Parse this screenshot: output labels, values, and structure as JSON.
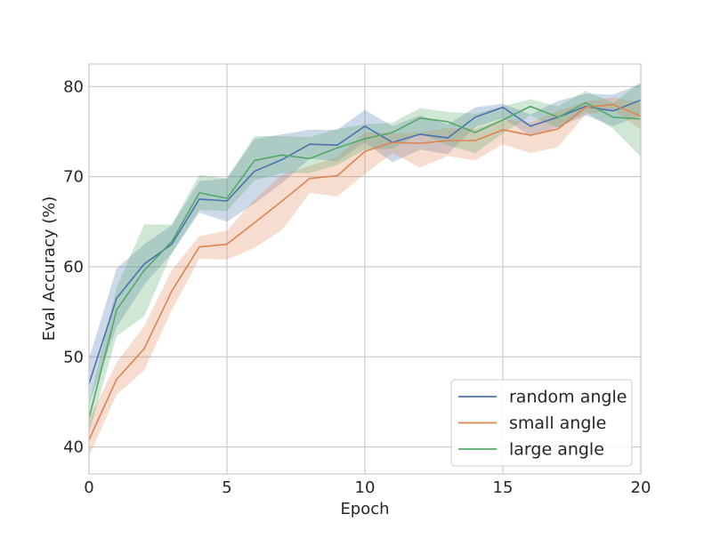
{
  "chart_data": {
    "type": "line",
    "title": "",
    "xlabel": "Epoch",
    "ylabel": "Eval Accuracy (%)",
    "xlim": [
      0,
      20
    ],
    "ylim": [
      37,
      82.5
    ],
    "xticks": [
      0,
      5,
      10,
      15,
      20
    ],
    "yticks": [
      40,
      50,
      60,
      70,
      80
    ],
    "grid": true,
    "legend_position": "lower-right",
    "x": [
      0,
      1,
      2,
      3,
      4,
      5,
      6,
      7,
      8,
      9,
      10,
      11,
      12,
      13,
      14,
      15,
      16,
      17,
      18,
      19,
      20
    ],
    "series": [
      {
        "name": "random angle",
        "color": "#4c72b0",
        "values": [
          47.0,
          56.5,
          60.3,
          62.5,
          67.5,
          67.3,
          70.6,
          71.9,
          73.6,
          73.5,
          75.6,
          73.8,
          74.7,
          74.3,
          76.6,
          77.7,
          75.6,
          76.6,
          77.8,
          77.3,
          78.5
        ],
        "lower": [
          44.8,
          53.3,
          58.0,
          61.5,
          66.0,
          65.0,
          67.0,
          69.3,
          72.0,
          71.7,
          73.8,
          71.6,
          73.0,
          72.5,
          75.5,
          76.5,
          74.5,
          75.5,
          76.8,
          75.6,
          76.8
        ],
        "upper": [
          49.8,
          59.8,
          62.5,
          64.6,
          69.5,
          69.8,
          74.2,
          74.7,
          75.2,
          75.2,
          77.4,
          75.6,
          76.8,
          75.8,
          77.7,
          78.1,
          76.9,
          78.4,
          79.2,
          79.1,
          80.3
        ]
      },
      {
        "name": "small angle",
        "color": "#dd8452",
        "values": [
          40.8,
          47.5,
          50.9,
          57.3,
          62.2,
          62.5,
          64.9,
          67.3,
          69.8,
          70.1,
          72.8,
          73.8,
          73.7,
          74.0,
          74.0,
          75.2,
          74.6,
          75.3,
          77.7,
          78.0,
          76.7
        ],
        "lower": [
          39.0,
          45.8,
          48.5,
          55.2,
          60.9,
          60.8,
          62.1,
          64.1,
          68.2,
          67.8,
          70.3,
          72.6,
          71.0,
          72.3,
          71.8,
          73.6,
          72.6,
          73.3,
          76.9,
          77.4,
          75.2
        ],
        "upper": [
          43.0,
          49.4,
          53.4,
          59.6,
          63.4,
          64.0,
          67.5,
          70.2,
          71.2,
          72.2,
          74.9,
          74.8,
          74.9,
          75.4,
          75.3,
          76.4,
          76.0,
          77.3,
          78.3,
          78.8,
          78.2
        ]
      },
      {
        "name": "large angle",
        "color": "#55a868",
        "values": [
          43.2,
          55.2,
          59.6,
          62.8,
          68.2,
          67.6,
          71.8,
          72.4,
          72.0,
          73.2,
          74.2,
          74.9,
          76.5,
          76.1,
          74.9,
          76.3,
          77.8,
          76.6,
          78.2,
          76.6,
          76.4
        ],
        "lower": [
          41.5,
          52.3,
          54.5,
          61.5,
          66.3,
          66.2,
          69.6,
          70.4,
          70.4,
          71.3,
          73.0,
          73.1,
          74.8,
          73.5,
          72.6,
          74.8,
          76.8,
          75.4,
          77.2,
          75.3,
          72.2
        ],
        "upper": [
          44.8,
          57.7,
          64.7,
          64.7,
          70.2,
          69.8,
          74.5,
          74.5,
          74.4,
          75.3,
          75.8,
          76.0,
          77.6,
          77.2,
          77.0,
          77.8,
          78.6,
          77.8,
          79.5,
          78.2,
          80.5
        ]
      }
    ]
  }
}
